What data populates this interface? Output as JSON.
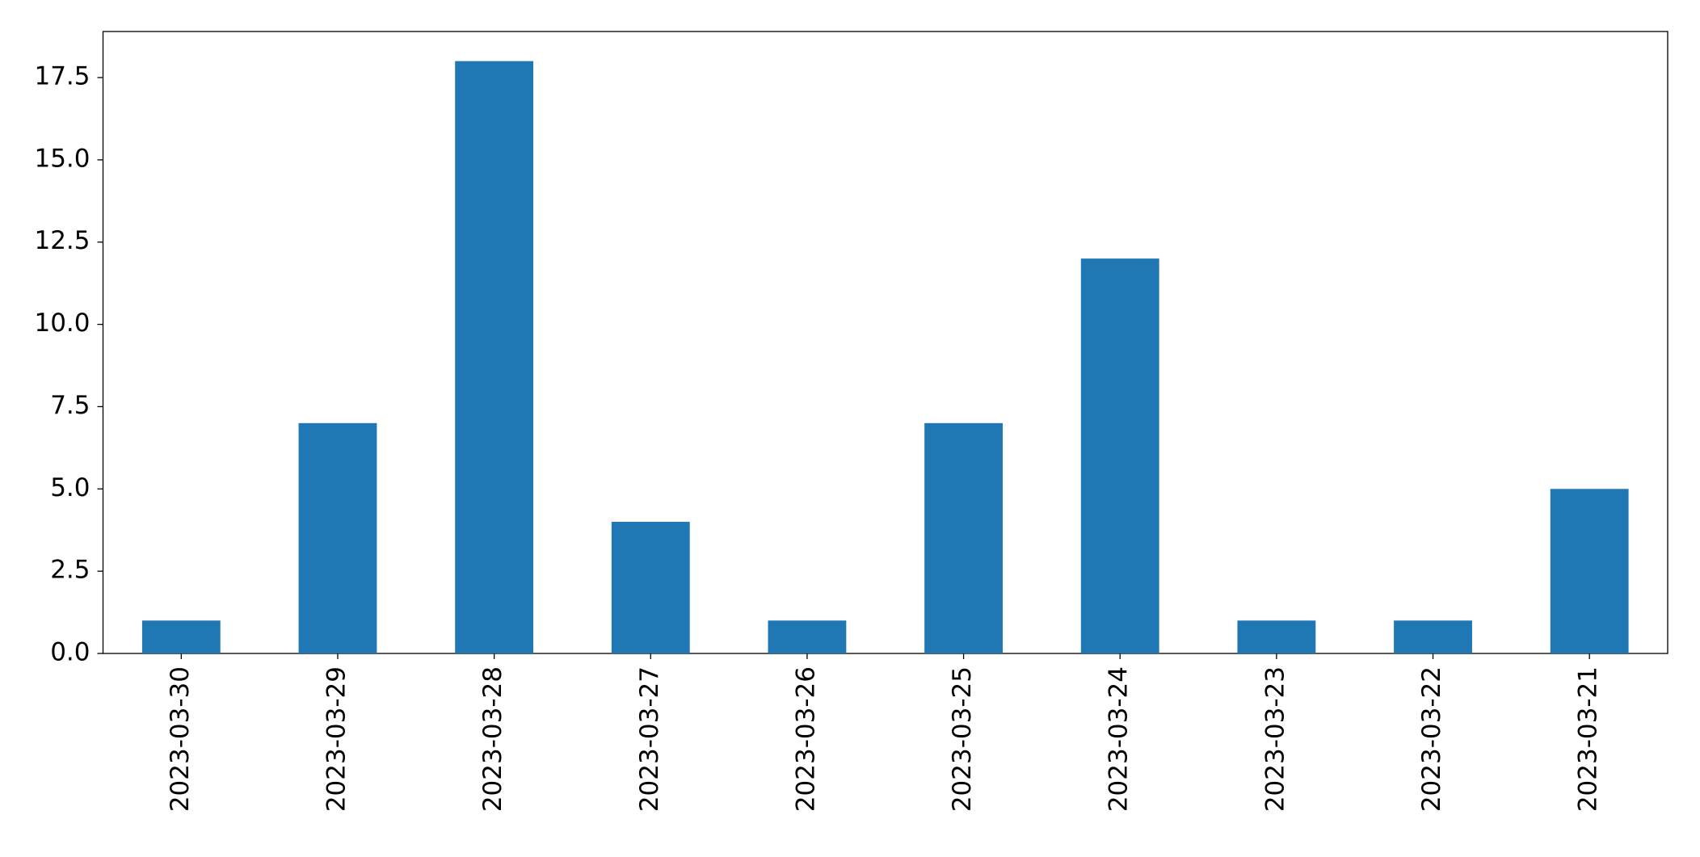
{
  "chart_data": {
    "type": "bar",
    "categories": [
      "2023-03-30",
      "2023-03-29",
      "2023-03-28",
      "2023-03-27",
      "2023-03-26",
      "2023-03-25",
      "2023-03-24",
      "2023-03-23",
      "2023-03-22",
      "2023-03-21"
    ],
    "values": [
      1,
      7,
      18,
      4,
      1,
      7,
      12,
      1,
      1,
      5
    ],
    "color": "#1f77b4",
    "ylim": [
      0,
      18.9
    ],
    "yticks": [
      {
        "value": 0,
        "label": "0.0"
      },
      2.5,
      {
        "value": 5,
        "label": "5.0"
      },
      7.5,
      {
        "value": 10,
        "label": "10.0"
      },
      12.5,
      {
        "value": 15,
        "label": "15.0"
      },
      17.5
    ],
    "grid": false
  }
}
